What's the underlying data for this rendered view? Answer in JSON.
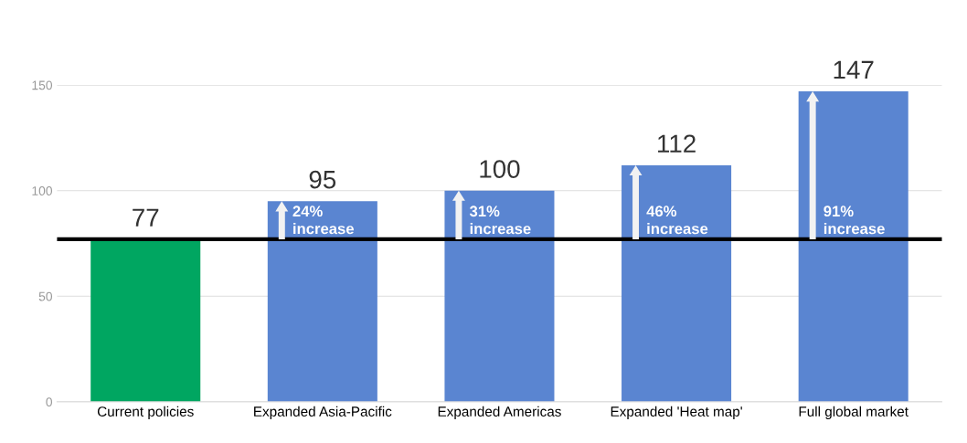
{
  "chart_data": {
    "type": "bar",
    "categories": [
      "Current policies",
      "Expanded Asia-Pacific",
      "Expanded Americas",
      "Expanded 'Heat map'",
      "Full global market"
    ],
    "values": [
      77,
      95,
      100,
      112,
      147
    ],
    "colors": [
      "#00a661",
      "#5a85d1",
      "#5a85d1",
      "#5a85d1",
      "#5a85d1"
    ],
    "ylim": [
      0,
      150
    ],
    "yticks": [
      0,
      50,
      100,
      150
    ],
    "grid": "y",
    "data_labels": true,
    "ref_lines": [
      {
        "axis": "y",
        "value": 77,
        "color": "#000000"
      }
    ],
    "annotations": [
      "24%\nincrease",
      "31%\nincrease",
      "46%\nincrease",
      "91%\nincrease"
    ]
  }
}
